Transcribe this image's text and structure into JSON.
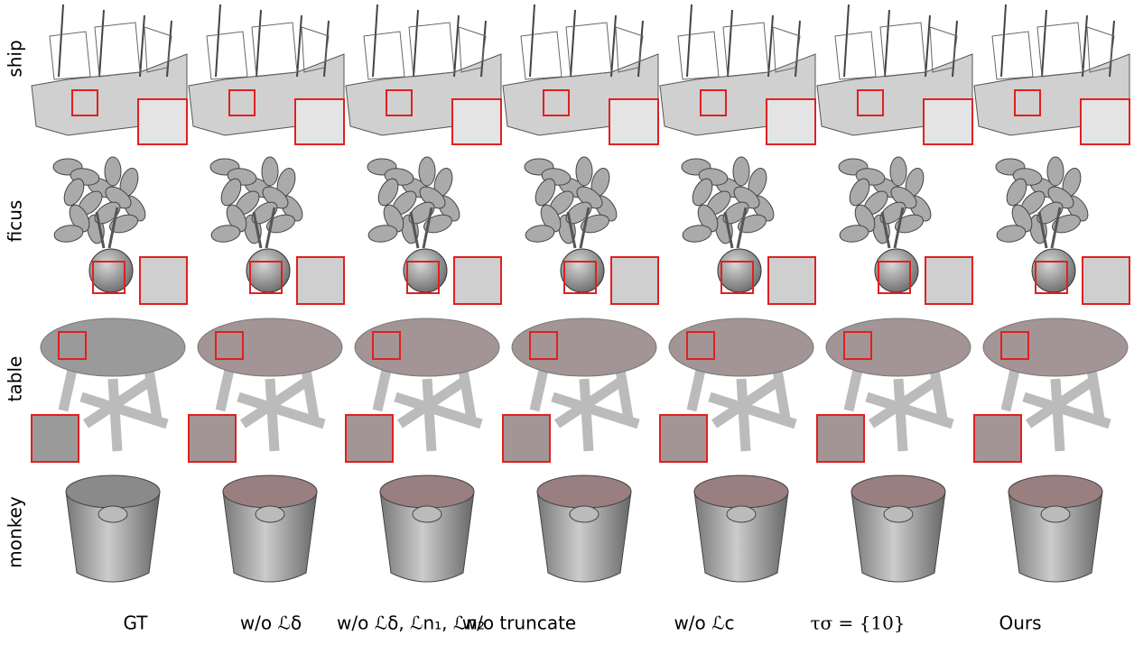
{
  "rows": [
    "ship",
    "ficus",
    "table",
    "monkey"
  ],
  "columns": [
    "GT",
    "w/o ℒδ",
    "w/o ℒδ, ℒn₁, ℒn₂",
    "w/o truncate",
    "w/o ℒc",
    "τσ = {10}",
    "Ours"
  ]
}
